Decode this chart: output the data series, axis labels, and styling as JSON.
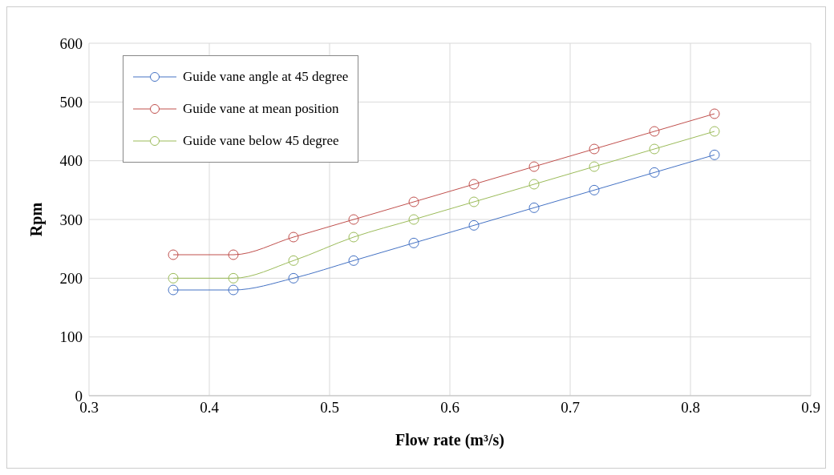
{
  "chart_data": {
    "type": "line",
    "xlabel": "Flow rate (m³/s)",
    "ylabel": "Rpm",
    "x": [
      0.37,
      0.42,
      0.47,
      0.52,
      0.57,
      0.62,
      0.67,
      0.72,
      0.77,
      0.82
    ],
    "series": [
      {
        "name": "Guide vane angle at 45 degree",
        "color": "#4472c4",
        "values": [
          180,
          180,
          200,
          230,
          260,
          290,
          320,
          350,
          380,
          410
        ]
      },
      {
        "name": "Guide vane at mean position",
        "color": "#c0504d",
        "values": [
          240,
          240,
          270,
          300,
          330,
          360,
          390,
          420,
          450,
          480
        ]
      },
      {
        "name": "Guide vane below 45 degree",
        "color": "#9bbb59",
        "values": [
          200,
          200,
          230,
          270,
          300,
          330,
          360,
          390,
          420,
          450
        ]
      }
    ],
    "xlim": [
      0.3,
      0.9
    ],
    "xticks": [
      0.3,
      0.4,
      0.5,
      0.6,
      0.7,
      0.8,
      0.9
    ],
    "ylim": [
      0,
      600
    ],
    "yticks": [
      0,
      100,
      200,
      300,
      400,
      500,
      600
    ],
    "grid": true,
    "legend": "top left",
    "marker": "circle",
    "line_style": "solid"
  }
}
